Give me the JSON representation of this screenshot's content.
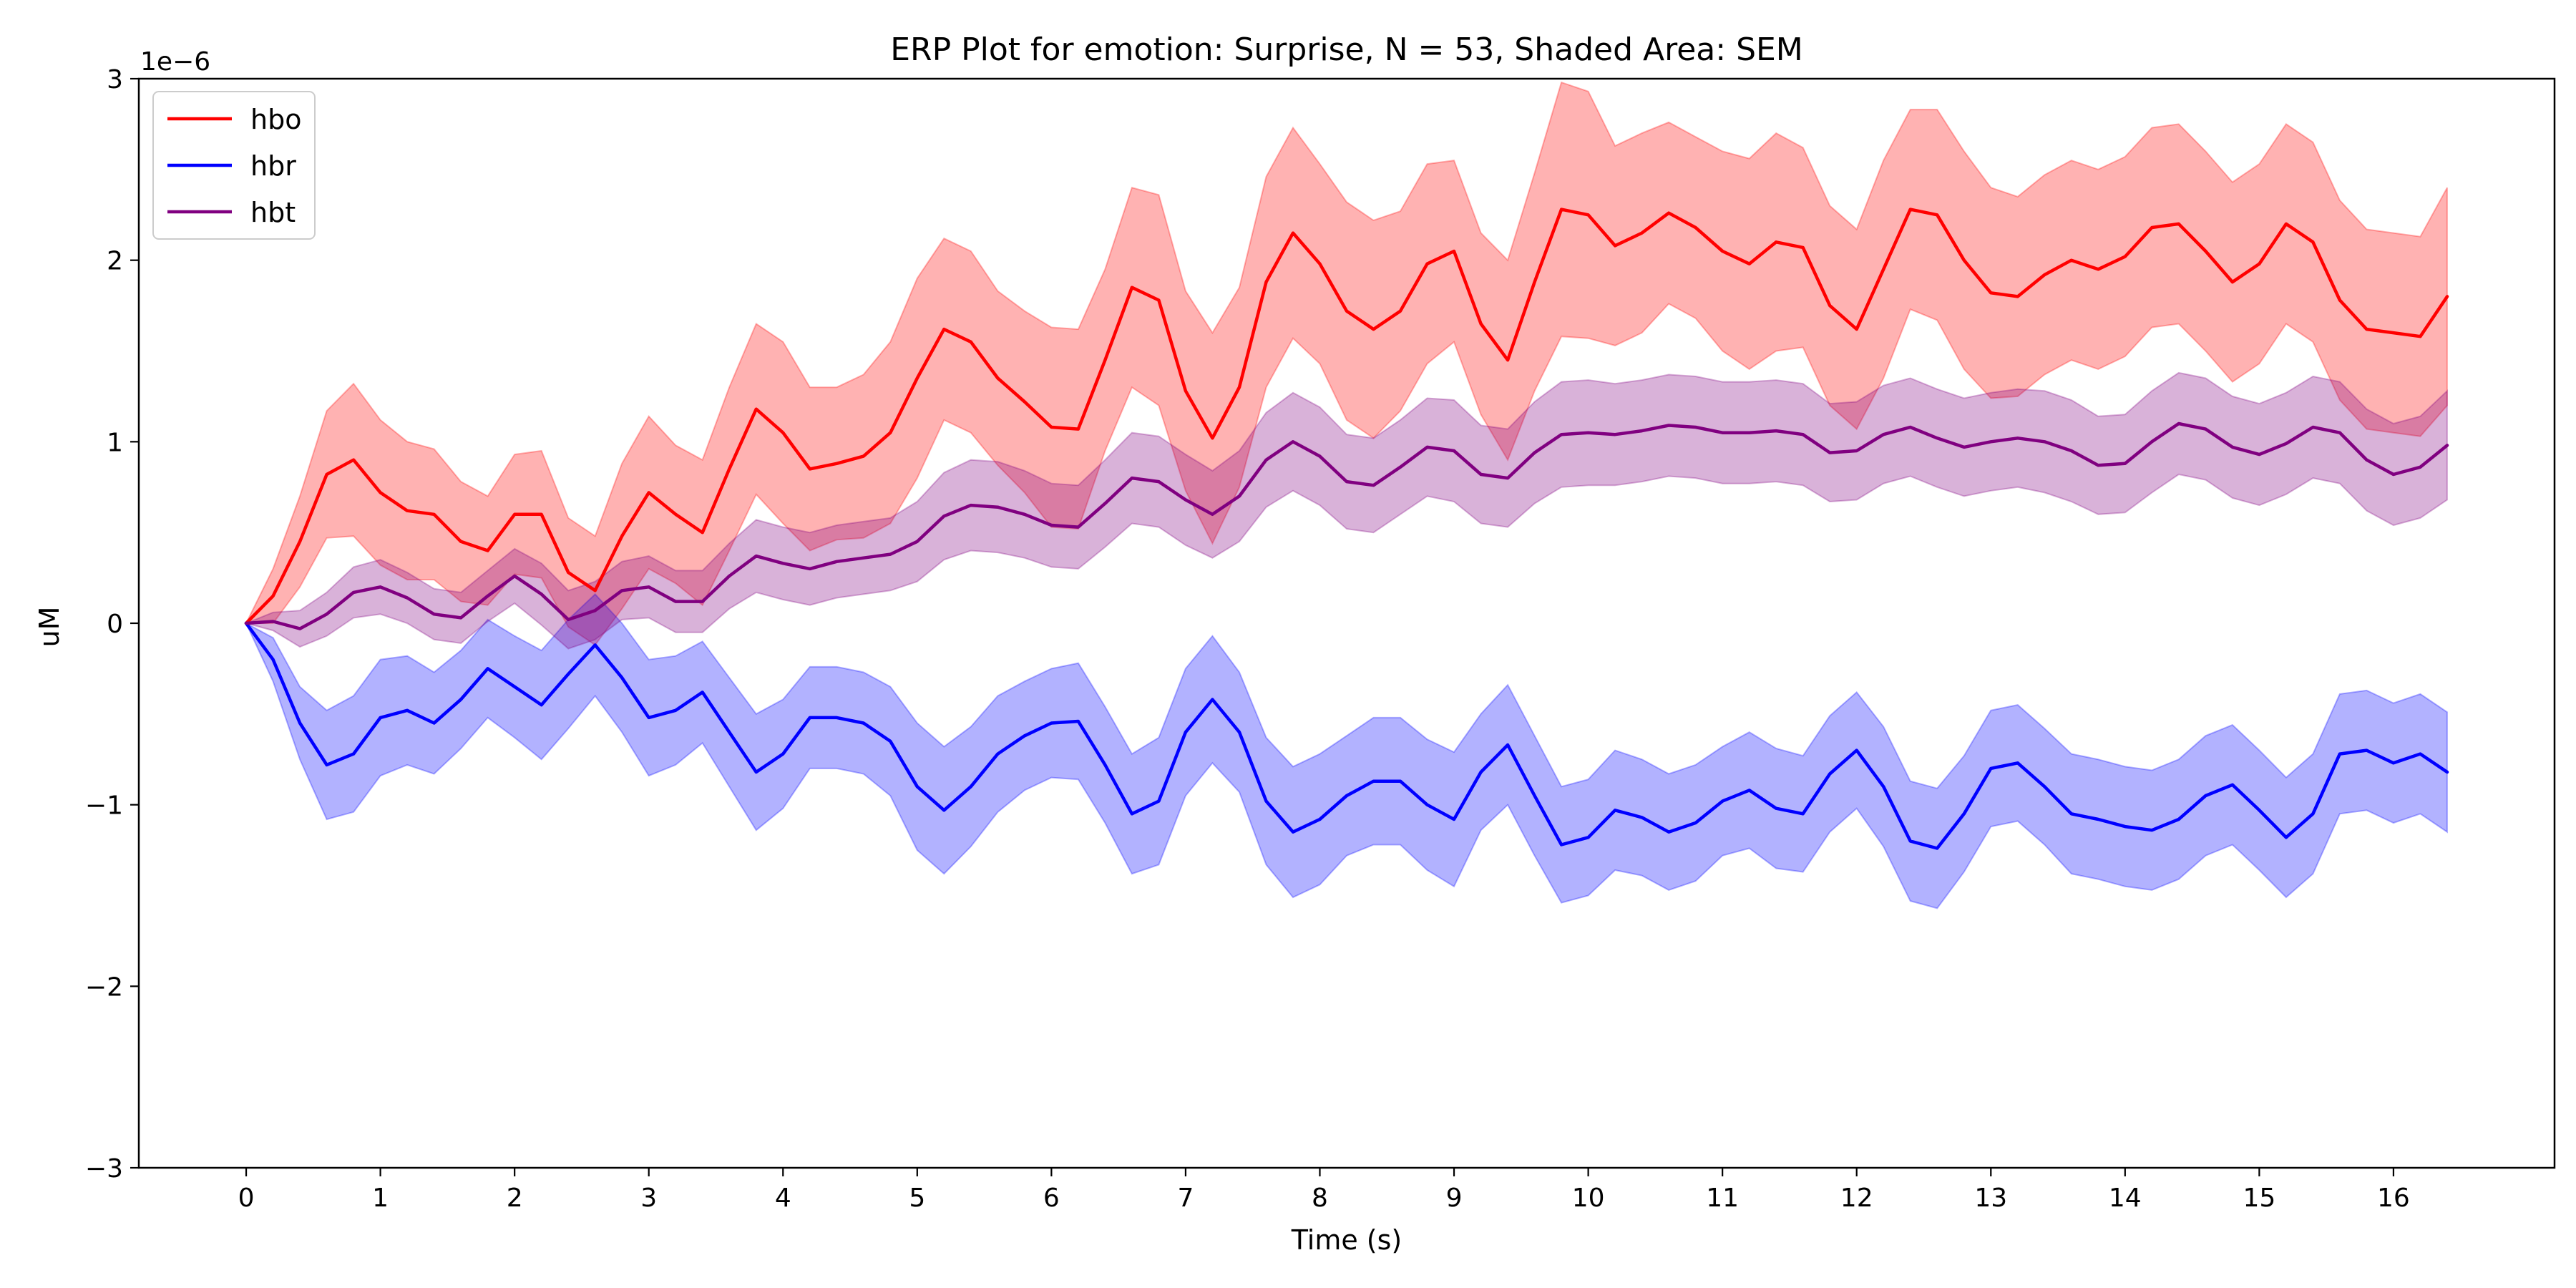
{
  "chart_data": {
    "type": "line",
    "title": "ERP Plot for emotion: Surprise, N = 53, Shaded Area: SEM",
    "xlabel": "Time (s)",
    "ylabel": "uM",
    "y_scale_label": "1e−6",
    "xlim": [
      -0.8,
      17.2
    ],
    "ylim": [
      -3,
      3
    ],
    "xticks": [
      0,
      1,
      2,
      3,
      4,
      5,
      6,
      7,
      8,
      9,
      10,
      11,
      12,
      13,
      14,
      15,
      16
    ],
    "yticks": [
      -3,
      -2,
      -1,
      0,
      1,
      2,
      3
    ],
    "ytick_labels": [
      "−3",
      "−2",
      "−1",
      "0",
      "1",
      "2",
      "3"
    ],
    "legend_position": "upper-left",
    "grid": false,
    "x": [
      0,
      0.2,
      0.4,
      0.6,
      0.8,
      1.0,
      1.2,
      1.4,
      1.6,
      1.8,
      2.0,
      2.2,
      2.4,
      2.6,
      2.8,
      3.0,
      3.2,
      3.4,
      3.6,
      3.8,
      4.0,
      4.2,
      4.4,
      4.6,
      4.8,
      5.0,
      5.2,
      5.4,
      5.6,
      5.8,
      6.0,
      6.2,
      6.4,
      6.6,
      6.8,
      7.0,
      7.2,
      7.4,
      7.6,
      7.8,
      8.0,
      8.2,
      8.4,
      8.6,
      8.8,
      9.0,
      9.2,
      9.4,
      9.6,
      9.8,
      10.0,
      10.2,
      10.4,
      10.6,
      10.8,
      11.0,
      11.2,
      11.4,
      11.6,
      11.8,
      12.0,
      12.2,
      12.4,
      12.6,
      12.8,
      13.0,
      13.2,
      13.4,
      13.6,
      13.8,
      14.0,
      14.2,
      14.4,
      14.6,
      14.8,
      15.0,
      15.2,
      15.4,
      15.6,
      15.8,
      16.0,
      16.2,
      16.4
    ],
    "series": [
      {
        "name": "hbo",
        "color": "#ff0000",
        "fill_color": "#ff0000",
        "fill_opacity": 0.3,
        "values": [
          0,
          0.15,
          0.45,
          0.82,
          0.9,
          0.72,
          0.62,
          0.6,
          0.45,
          0.4,
          0.6,
          0.6,
          0.28,
          0.18,
          0.48,
          0.72,
          0.6,
          0.5,
          0.85,
          1.18,
          1.05,
          0.85,
          0.88,
          0.92,
          1.05,
          1.35,
          1.62,
          1.55,
          1.35,
          1.22,
          1.08,
          1.07,
          1.45,
          1.85,
          1.78,
          1.28,
          1.02,
          1.3,
          1.88,
          2.15,
          1.98,
          1.72,
          1.62,
          1.72,
          1.98,
          2.05,
          1.65,
          1.45,
          1.88,
          2.28,
          2.25,
          2.08,
          2.15,
          2.26,
          2.18,
          2.05,
          1.98,
          2.1,
          2.07,
          1.75,
          1.62,
          1.95,
          2.28,
          2.25,
          2.0,
          1.82,
          1.8,
          1.92,
          2.0,
          1.95,
          2.02,
          2.18,
          2.2,
          2.05,
          1.88,
          1.98,
          2.2,
          2.1,
          1.78,
          1.62,
          1.6,
          1.58,
          1.8
        ],
        "sem": [
          0,
          0.15,
          0.25,
          0.35,
          0.42,
          0.4,
          0.38,
          0.36,
          0.33,
          0.3,
          0.33,
          0.35,
          0.3,
          0.3,
          0.4,
          0.42,
          0.38,
          0.4,
          0.45,
          0.47,
          0.5,
          0.45,
          0.42,
          0.45,
          0.5,
          0.55,
          0.5,
          0.5,
          0.48,
          0.5,
          0.55,
          0.55,
          0.5,
          0.55,
          0.58,
          0.55,
          0.58,
          0.55,
          0.58,
          0.58,
          0.55,
          0.6,
          0.6,
          0.55,
          0.55,
          0.5,
          0.5,
          0.55,
          0.6,
          0.7,
          0.68,
          0.55,
          0.55,
          0.5,
          0.5,
          0.55,
          0.58,
          0.6,
          0.55,
          0.55,
          0.55,
          0.6,
          0.55,
          0.58,
          0.6,
          0.58,
          0.55,
          0.55,
          0.55,
          0.55,
          0.55,
          0.55,
          0.55,
          0.55,
          0.55,
          0.55,
          0.55,
          0.55,
          0.55,
          0.55,
          0.55,
          0.55,
          0.6
        ]
      },
      {
        "name": "hbr",
        "color": "#0000ff",
        "fill_color": "#0000ff",
        "fill_opacity": 0.3,
        "values": [
          0,
          -0.2,
          -0.55,
          -0.78,
          -0.72,
          -0.52,
          -0.48,
          -0.55,
          -0.42,
          -0.25,
          -0.35,
          -0.45,
          -0.28,
          -0.12,
          -0.3,
          -0.52,
          -0.48,
          -0.38,
          -0.6,
          -0.82,
          -0.72,
          -0.52,
          -0.52,
          -0.55,
          -0.65,
          -0.9,
          -1.03,
          -0.9,
          -0.72,
          -0.62,
          -0.55,
          -0.54,
          -0.78,
          -1.05,
          -0.98,
          -0.6,
          -0.42,
          -0.6,
          -0.98,
          -1.15,
          -1.08,
          -0.95,
          -0.87,
          -0.87,
          -1.0,
          -1.08,
          -0.82,
          -0.67,
          -0.95,
          -1.22,
          -1.18,
          -1.03,
          -1.07,
          -1.15,
          -1.1,
          -0.98,
          -0.92,
          -1.02,
          -1.05,
          -0.83,
          -0.7,
          -0.9,
          -1.2,
          -1.24,
          -1.05,
          -0.8,
          -0.77,
          -0.9,
          -1.05,
          -1.08,
          -1.12,
          -1.14,
          -1.08,
          -0.95,
          -0.89,
          -1.03,
          -1.18,
          -1.05,
          -0.72,
          -0.7,
          -0.77,
          -0.72,
          -0.82
        ],
        "sem": [
          0,
          0.12,
          0.2,
          0.3,
          0.32,
          0.32,
          0.3,
          0.28,
          0.27,
          0.27,
          0.28,
          0.3,
          0.3,
          0.28,
          0.3,
          0.32,
          0.3,
          0.28,
          0.3,
          0.32,
          0.3,
          0.28,
          0.28,
          0.28,
          0.3,
          0.35,
          0.35,
          0.33,
          0.32,
          0.3,
          0.3,
          0.32,
          0.32,
          0.33,
          0.35,
          0.35,
          0.35,
          0.33,
          0.35,
          0.36,
          0.36,
          0.33,
          0.35,
          0.35,
          0.36,
          0.37,
          0.32,
          0.33,
          0.33,
          0.32,
          0.32,
          0.33,
          0.32,
          0.32,
          0.32,
          0.3,
          0.32,
          0.33,
          0.32,
          0.32,
          0.32,
          0.33,
          0.33,
          0.33,
          0.32,
          0.32,
          0.32,
          0.32,
          0.33,
          0.33,
          0.33,
          0.33,
          0.33,
          0.33,
          0.33,
          0.33,
          0.33,
          0.33,
          0.33,
          0.33,
          0.33,
          0.33,
          0.33
        ]
      },
      {
        "name": "hbt",
        "color": "#800080",
        "fill_color": "#800080",
        "fill_opacity": 0.3,
        "values": [
          0,
          0.01,
          -0.03,
          0.05,
          0.17,
          0.2,
          0.14,
          0.05,
          0.03,
          0.15,
          0.26,
          0.16,
          0.02,
          0.07,
          0.18,
          0.2,
          0.12,
          0.12,
          0.26,
          0.37,
          0.33,
          0.3,
          0.34,
          0.36,
          0.38,
          0.45,
          0.59,
          0.65,
          0.64,
          0.6,
          0.54,
          0.53,
          0.66,
          0.8,
          0.78,
          0.68,
          0.6,
          0.7,
          0.9,
          1.0,
          0.92,
          0.78,
          0.76,
          0.86,
          0.97,
          0.95,
          0.82,
          0.8,
          0.94,
          1.04,
          1.05,
          1.04,
          1.06,
          1.09,
          1.08,
          1.05,
          1.05,
          1.06,
          1.04,
          0.94,
          0.95,
          1.04,
          1.08,
          1.02,
          0.97,
          1.0,
          1.02,
          1.0,
          0.95,
          0.87,
          0.88,
          1.0,
          1.1,
          1.07,
          0.97,
          0.93,
          0.99,
          1.08,
          1.05,
          0.9,
          0.82,
          0.86,
          0.98
        ],
        "sem": [
          0,
          0.05,
          0.1,
          0.12,
          0.14,
          0.15,
          0.14,
          0.14,
          0.14,
          0.14,
          0.15,
          0.17,
          0.16,
          0.16,
          0.16,
          0.17,
          0.17,
          0.17,
          0.18,
          0.2,
          0.2,
          0.2,
          0.2,
          0.2,
          0.2,
          0.22,
          0.24,
          0.25,
          0.25,
          0.24,
          0.23,
          0.23,
          0.24,
          0.25,
          0.25,
          0.25,
          0.24,
          0.25,
          0.26,
          0.27,
          0.27,
          0.26,
          0.26,
          0.26,
          0.27,
          0.28,
          0.27,
          0.27,
          0.28,
          0.29,
          0.29,
          0.28,
          0.28,
          0.28,
          0.28,
          0.28,
          0.28,
          0.28,
          0.28,
          0.27,
          0.27,
          0.27,
          0.27,
          0.27,
          0.27,
          0.27,
          0.27,
          0.28,
          0.28,
          0.27,
          0.27,
          0.28,
          0.28,
          0.28,
          0.28,
          0.28,
          0.28,
          0.28,
          0.28,
          0.28,
          0.28,
          0.28,
          0.3
        ]
      }
    ]
  }
}
